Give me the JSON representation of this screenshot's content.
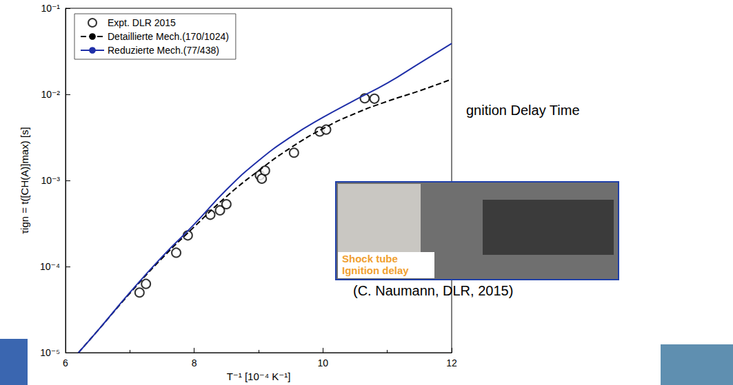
{
  "chart_data": {
    "type": "line",
    "x_label": "T⁻¹ [10⁻⁴ K⁻¹]",
    "y_label": "τign = t([CH(A)]max) [s]",
    "log": "y",
    "grid": false,
    "legend": "upper left",
    "xlim": [
      6,
      12
    ],
    "xticks": [
      6,
      8,
      10,
      12
    ],
    "ylim": [
      1e-05,
      0.1
    ],
    "yticks": [
      {
        "value": 1e-05,
        "label": "10⁻⁵"
      },
      {
        "value": 0.0001,
        "label": "10⁻⁴"
      },
      {
        "value": 0.001,
        "label": "10⁻³"
      },
      {
        "value": 0.01,
        "label": "10⁻²"
      },
      {
        "value": 0.1,
        "label": "10⁻¹"
      }
    ],
    "series": [
      {
        "name": "Expt. DLR 2015",
        "type": "scatter",
        "marker": "circle",
        "color": "#000000",
        "x": [
          7.15,
          7.25,
          7.72,
          7.9,
          8.25,
          8.4,
          8.5,
          9.02,
          9.05,
          9.1,
          9.55,
          9.95,
          10.05,
          10.65,
          10.8
        ],
        "values": [
          5e-05,
          6.3e-05,
          0.000145,
          0.00023,
          0.0004,
          0.00045,
          0.00053,
          0.00115,
          0.00105,
          0.0013,
          0.0021,
          0.0037,
          0.0039,
          0.009,
          0.0089
        ]
      },
      {
        "name": "Detaillierte Mech.(170/1024)",
        "type": "line",
        "line_style": "dashed",
        "color": "#000000",
        "x": [
          6.2,
          6.5,
          7,
          7.5,
          8,
          8.5,
          9,
          9.5,
          10,
          10.5,
          11,
          11.5,
          12
        ],
        "values": [
          1e-05,
          1.8e-05,
          4.9e-05,
          0.000125,
          0.00029,
          0.00065,
          0.0013,
          0.0024,
          0.004,
          0.006,
          0.0083,
          0.011,
          0.015
        ]
      },
      {
        "name": "Reduzierte Mech.(77/438)",
        "type": "line",
        "line_style": "solid",
        "color": "#1f2fa8",
        "x": [
          6.2,
          6.5,
          7,
          7.5,
          8,
          8.5,
          9,
          9.5,
          10,
          10.5,
          11,
          11.5,
          12
        ],
        "values": [
          1e-05,
          1.8e-05,
          5e-05,
          0.00013,
          0.00031,
          0.00078,
          0.0017,
          0.0032,
          0.0054,
          0.0086,
          0.0135,
          0.023,
          0.039
        ]
      }
    ],
    "annotations": [
      {
        "text": "gnition Delay Time"
      },
      {
        "text": "Shock tube"
      },
      {
        "text": "Ignition delay"
      },
      {
        "text": "(C. Naumann, DLR, 2015)"
      }
    ]
  }
}
